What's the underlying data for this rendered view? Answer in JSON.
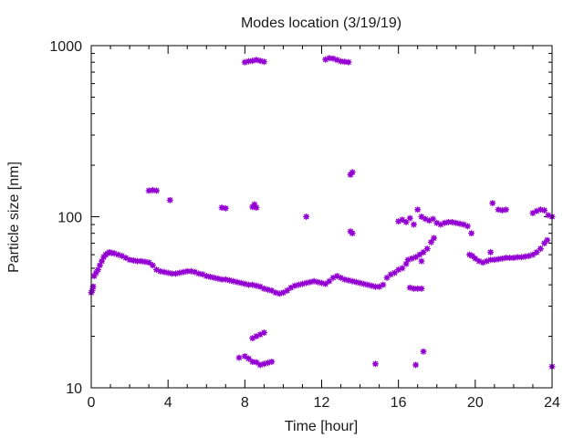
{
  "chart_data": {
    "type": "scatter",
    "title": "Modes location (3/19/19)",
    "xlabel": "Time [hour]",
    "ylabel": "Particle size [nm]",
    "xlim": [
      0,
      24
    ],
    "ylim": [
      10,
      1000
    ],
    "yscale": "log",
    "grid": false,
    "legend": "none",
    "marker_color": "#9400d3",
    "x_ticks": [
      0,
      4,
      8,
      12,
      16,
      20,
      24
    ],
    "x_tick_labels": [
      "0",
      "4",
      "8",
      "12",
      "16",
      "20",
      "24"
    ],
    "y_ticks": [
      10,
      100,
      1000
    ],
    "y_tick_labels": [
      "10",
      "100",
      "1000"
    ],
    "series": [
      {
        "points": [
          [
            0.0,
            36
          ],
          [
            0.05,
            37
          ],
          [
            0.1,
            39
          ],
          [
            0.15,
            45
          ],
          [
            0.25,
            47
          ],
          [
            0.35,
            49
          ],
          [
            0.45,
            52
          ],
          [
            0.55,
            55
          ],
          [
            0.65,
            58
          ],
          [
            0.75,
            60
          ],
          [
            0.85,
            61
          ],
          [
            0.95,
            62
          ],
          [
            1.05,
            61.5
          ],
          [
            1.2,
            61
          ],
          [
            1.4,
            60
          ],
          [
            1.6,
            59
          ],
          [
            1.8,
            57.5
          ],
          [
            2.0,
            56
          ],
          [
            2.2,
            55.5
          ],
          [
            2.4,
            55
          ],
          [
            2.6,
            55
          ],
          [
            2.8,
            54.5
          ],
          [
            3.0,
            54
          ],
          [
            3.2,
            52
          ],
          [
            3.4,
            49
          ],
          [
            3.6,
            48
          ],
          [
            3.8,
            47.5
          ],
          [
            4.0,
            47
          ],
          [
            4.2,
            46.5
          ],
          [
            4.4,
            46.5
          ],
          [
            4.6,
            47
          ],
          [
            4.8,
            47.5
          ],
          [
            5.0,
            48
          ],
          [
            5.2,
            48
          ],
          [
            5.4,
            47.5
          ],
          [
            5.6,
            46.5
          ],
          [
            5.8,
            46
          ],
          [
            6.0,
            45
          ],
          [
            6.2,
            44.5
          ],
          [
            6.4,
            44
          ],
          [
            6.6,
            43.5
          ],
          [
            6.8,
            43
          ],
          [
            7.0,
            43
          ],
          [
            7.2,
            42.5
          ],
          [
            7.4,
            42
          ],
          [
            7.6,
            41.5
          ],
          [
            7.8,
            41
          ],
          [
            8.0,
            40.5
          ],
          [
            8.2,
            40
          ],
          [
            8.4,
            40
          ],
          [
            8.6,
            39.5
          ],
          [
            8.8,
            39
          ],
          [
            9.0,
            38
          ],
          [
            9.2,
            37.5
          ],
          [
            9.4,
            37
          ],
          [
            9.6,
            36
          ],
          [
            9.8,
            35.5
          ],
          [
            10.0,
            36
          ],
          [
            10.2,
            37
          ],
          [
            10.4,
            38.5
          ],
          [
            10.6,
            39.5
          ],
          [
            10.8,
            40
          ],
          [
            11.0,
            40.5
          ],
          [
            11.2,
            41
          ],
          [
            11.4,
            41.5
          ],
          [
            11.6,
            42
          ],
          [
            11.8,
            41.5
          ],
          [
            12.0,
            41
          ],
          [
            12.2,
            40.5
          ],
          [
            12.4,
            42
          ],
          [
            12.6,
            44
          ],
          [
            12.8,
            45
          ],
          [
            13.0,
            44
          ],
          [
            13.2,
            43
          ],
          [
            13.4,
            42.5
          ],
          [
            13.6,
            42
          ],
          [
            13.8,
            41.5
          ],
          [
            14.0,
            41
          ],
          [
            14.2,
            40.5
          ],
          [
            14.4,
            40
          ],
          [
            14.6,
            39.5
          ],
          [
            14.8,
            39
          ],
          [
            15.0,
            39
          ],
          [
            15.2,
            40
          ],
          [
            15.4,
            44
          ],
          [
            15.6,
            46
          ],
          [
            15.8,
            47
          ],
          [
            16.0,
            49
          ],
          [
            16.2,
            50
          ],
          [
            16.4,
            53
          ],
          [
            16.5,
            56
          ],
          [
            16.7,
            57
          ],
          [
            16.9,
            58
          ],
          [
            17.1,
            60
          ],
          [
            17.3,
            62
          ],
          [
            17.5,
            65
          ],
          [
            17.7,
            71
          ],
          [
            17.85,
            75
          ],
          [
            19.7,
            60
          ],
          [
            19.85,
            59
          ],
          [
            20.0,
            57
          ],
          [
            20.2,
            55
          ],
          [
            20.4,
            54
          ],
          [
            20.6,
            55
          ],
          [
            20.8,
            56
          ],
          [
            21.0,
            56
          ],
          [
            21.2,
            56.5
          ],
          [
            21.4,
            57
          ],
          [
            21.6,
            57.5
          ],
          [
            21.8,
            57.5
          ],
          [
            22.0,
            57.5
          ],
          [
            22.2,
            58
          ],
          [
            22.4,
            58
          ],
          [
            22.6,
            58.5
          ],
          [
            22.8,
            59
          ],
          [
            23.0,
            60
          ],
          [
            23.2,
            62
          ],
          [
            23.4,
            65
          ],
          [
            23.6,
            70
          ],
          [
            23.75,
            73
          ],
          [
            16.6,
            38.5
          ],
          [
            16.8,
            38
          ],
          [
            17.0,
            38
          ],
          [
            17.2,
            38
          ],
          [
            20.8,
            62
          ],
          [
            17.2,
            55
          ],
          [
            16.0,
            94
          ],
          [
            16.2,
            96
          ],
          [
            16.4,
            93
          ],
          [
            16.6,
            98
          ],
          [
            16.8,
            90
          ],
          [
            17.0,
            110
          ],
          [
            17.2,
            100
          ],
          [
            17.4,
            97
          ],
          [
            17.6,
            95
          ],
          [
            17.8,
            97
          ],
          [
            18.0,
            92
          ],
          [
            18.2,
            90
          ],
          [
            18.4,
            92
          ],
          [
            18.6,
            93
          ],
          [
            18.8,
            93
          ],
          [
            19.0,
            92
          ],
          [
            19.2,
            91
          ],
          [
            19.4,
            90
          ],
          [
            19.6,
            88
          ],
          [
            19.8,
            80
          ],
          [
            20.9,
            120
          ],
          [
            21.2,
            110
          ],
          [
            21.4,
            109
          ],
          [
            21.6,
            110
          ],
          [
            23.0,
            105
          ],
          [
            23.2,
            108
          ],
          [
            23.4,
            110
          ],
          [
            23.6,
            109
          ],
          [
            23.8,
            102
          ],
          [
            24.0,
            100
          ],
          [
            3.0,
            142
          ],
          [
            3.2,
            143
          ],
          [
            3.4,
            142
          ],
          [
            4.1,
            125
          ],
          [
            6.8,
            113
          ],
          [
            7.0,
            112
          ],
          [
            8.4,
            114
          ],
          [
            8.5,
            118
          ],
          [
            8.6,
            113
          ],
          [
            11.2,
            100
          ],
          [
            13.5,
            82
          ],
          [
            13.6,
            80
          ],
          [
            8.0,
            800
          ],
          [
            8.2,
            810
          ],
          [
            8.4,
            815
          ],
          [
            8.6,
            825
          ],
          [
            8.8,
            815
          ],
          [
            9.0,
            805
          ],
          [
            12.2,
            830
          ],
          [
            12.4,
            845
          ],
          [
            12.6,
            840
          ],
          [
            12.8,
            825
          ],
          [
            13.0,
            810
          ],
          [
            13.2,
            805
          ],
          [
            13.4,
            800
          ],
          [
            13.6,
            182
          ],
          [
            13.5,
            176
          ],
          [
            7.7,
            15
          ],
          [
            8.0,
            15.3
          ],
          [
            8.2,
            14.8
          ],
          [
            8.4,
            14.2
          ],
          [
            8.6,
            14.1
          ],
          [
            8.8,
            13.6
          ],
          [
            9.0,
            13.8
          ],
          [
            9.2,
            14
          ],
          [
            9.4,
            14.2
          ],
          [
            8.4,
            19.5
          ],
          [
            8.6,
            20
          ],
          [
            8.8,
            20.5
          ],
          [
            9.0,
            21
          ],
          [
            14.8,
            13.8
          ],
          [
            16.9,
            13.6
          ],
          [
            17.3,
            16.3
          ],
          [
            24.0,
            13.3
          ]
        ]
      }
    ]
  }
}
